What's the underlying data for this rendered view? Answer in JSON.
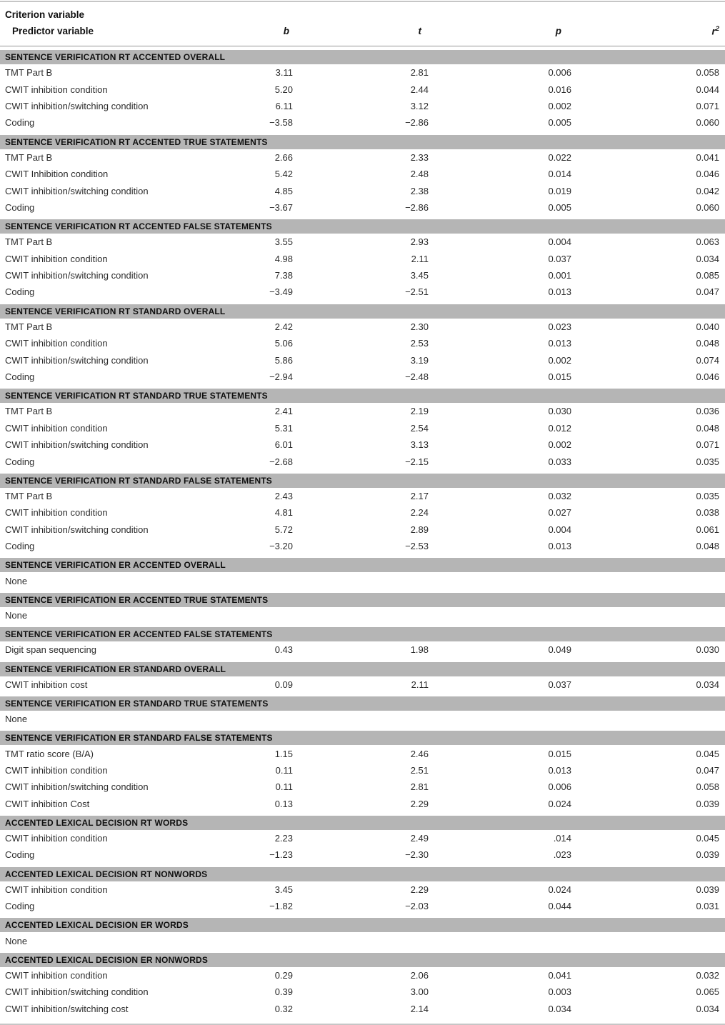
{
  "table": {
    "criterion_label": "Criterion variable",
    "predictor_label": "Predictor variable",
    "columns": [
      {
        "key": "b",
        "label": "b",
        "sup": ""
      },
      {
        "key": "t",
        "label": "t",
        "sup": ""
      },
      {
        "key": "p",
        "label": "p",
        "sup": ""
      },
      {
        "key": "r2",
        "label": "r",
        "sup": "2"
      }
    ],
    "band_color": "#b5b5b5",
    "rule_color": "#c6c6c6",
    "sections": [
      {
        "title": "SENTENCE VERIFICATION RT ACCENTED OVERALL",
        "rows": [
          {
            "predictor": "TMT Part B",
            "b": "3.11",
            "t": "2.81",
            "p": "0.006",
            "r2": "0.058"
          },
          {
            "predictor": "CWIT inhibition condition",
            "b": "5.20",
            "t": "2.44",
            "p": "0.016",
            "r2": "0.044"
          },
          {
            "predictor": "CWIT inhibition/switching condition",
            "b": "6.11",
            "t": "3.12",
            "p": "0.002",
            "r2": "0.071"
          },
          {
            "predictor": "Coding",
            "b": "−3.58",
            "t": "−2.86",
            "p": "0.005",
            "r2": "0.060"
          }
        ]
      },
      {
        "title": "SENTENCE VERIFICATION RT ACCENTED TRUE STATEMENTS",
        "rows": [
          {
            "predictor": "TMT Part B",
            "b": "2.66",
            "t": "2.33",
            "p": "0.022",
            "r2": "0.041"
          },
          {
            "predictor": "CWIT Inhibition condition",
            "b": "5.42",
            "t": "2.48",
            "p": "0.014",
            "r2": "0.046"
          },
          {
            "predictor": "CWIT inhibition/switching condition",
            "b": "4.85",
            "t": "2.38",
            "p": "0.019",
            "r2": "0.042"
          },
          {
            "predictor": "Coding",
            "b": "−3.67",
            "t": "−2.86",
            "p": "0.005",
            "r2": "0.060"
          }
        ]
      },
      {
        "title": "SENTENCE VERIFICATION RT ACCENTED FALSE STATEMENTS",
        "rows": [
          {
            "predictor": "TMT Part B",
            "b": "3.55",
            "t": "2.93",
            "p": "0.004",
            "r2": "0.063"
          },
          {
            "predictor": "CWIT inhibition condition",
            "b": "4.98",
            "t": "2.11",
            "p": "0.037",
            "r2": "0.034"
          },
          {
            "predictor": "CWIT inhibition/switching condition",
            "b": "7.38",
            "t": "3.45",
            "p": "0.001",
            "r2": "0.085"
          },
          {
            "predictor": "Coding",
            "b": "−3.49",
            "t": "−2.51",
            "p": "0.013",
            "r2": "0.047"
          }
        ]
      },
      {
        "title": "SENTENCE VERIFICATION RT STANDARD OVERALL",
        "rows": [
          {
            "predictor": "TMT Part B",
            "b": "2.42",
            "t": "2.30",
            "p": "0.023",
            "r2": "0.040"
          },
          {
            "predictor": "CWIT inhibition condition",
            "b": "5.06",
            "t": "2.53",
            "p": "0.013",
            "r2": "0.048"
          },
          {
            "predictor": "CWIT inhibition/switching condition",
            "b": "5.86",
            "t": "3.19",
            "p": "0.002",
            "r2": "0.074"
          },
          {
            "predictor": "Coding",
            "b": "−2.94",
            "t": "−2.48",
            "p": "0.015",
            "r2": "0.046"
          }
        ]
      },
      {
        "title": "SENTENCE VERIFICATION RT STANDARD TRUE STATEMENTS",
        "rows": [
          {
            "predictor": "TMT Part B",
            "b": "2.41",
            "t": "2.19",
            "p": "0.030",
            "r2": "0.036"
          },
          {
            "predictor": "CWIT inhibition condition",
            "b": "5.31",
            "t": "2.54",
            "p": "0.012",
            "r2": "0.048"
          },
          {
            "predictor": "CWIT inhibition/switching condition",
            "b": "6.01",
            "t": "3.13",
            "p": "0.002",
            "r2": "0.071"
          },
          {
            "predictor": "Coding",
            "b": "−2.68",
            "t": "−2.15",
            "p": "0.033",
            "r2": "0.035"
          }
        ]
      },
      {
        "title": "SENTENCE VERIFICATION RT STANDARD FALSE STATEMENTS",
        "rows": [
          {
            "predictor": "TMT Part B",
            "b": "2.43",
            "t": "2.17",
            "p": "0.032",
            "r2": "0.035"
          },
          {
            "predictor": "CWIT inhibition condition",
            "b": "4.81",
            "t": "2.24",
            "p": "0.027",
            "r2": "0.038"
          },
          {
            "predictor": "CWIT inhibition/switching condition",
            "b": "5.72",
            "t": "2.89",
            "p": "0.004",
            "r2": "0.061"
          },
          {
            "predictor": "Coding",
            "b": "−3.20",
            "t": "−2.53",
            "p": "0.013",
            "r2": "0.048"
          }
        ]
      },
      {
        "title": "SENTENCE VERIFICATION ER ACCENTED OVERALL",
        "rows": [
          {
            "predictor": "None",
            "b": "",
            "t": "",
            "p": "",
            "r2": ""
          }
        ]
      },
      {
        "title": "SENTENCE VERIFICATION ER ACCENTED TRUE STATEMENTS",
        "rows": [
          {
            "predictor": "None",
            "b": "",
            "t": "",
            "p": "",
            "r2": ""
          }
        ]
      },
      {
        "title": "SENTENCE VERIFICATION ER ACCENTED FALSE STATEMENTS",
        "rows": [
          {
            "predictor": "Digit span sequencing",
            "b": "0.43",
            "t": "1.98",
            "p": "0.049",
            "r2": "0.030"
          }
        ]
      },
      {
        "title": "SENTENCE VERIFICATION ER STANDARD OVERALL",
        "rows": [
          {
            "predictor": "CWIT inhibition cost",
            "b": "0.09",
            "t": "2.11",
            "p": "0.037",
            "r2": "0.034"
          }
        ]
      },
      {
        "title": "SENTENCE VERIFICATION ER STANDARD TRUE STATEMENTS",
        "rows": [
          {
            "predictor": "None",
            "b": "",
            "t": "",
            "p": "",
            "r2": ""
          }
        ]
      },
      {
        "title": "SENTENCE VERIFICATION ER STANDARD FALSE STATEMENTS",
        "rows": [
          {
            "predictor": "TMT ratio score (B/A)",
            "b": "1.15",
            "t": "2.46",
            "p": "0.015",
            "r2": "0.045"
          },
          {
            "predictor": "CWIT inhibition condition",
            "b": "0.11",
            "t": "2.51",
            "p": "0.013",
            "r2": "0.047"
          },
          {
            "predictor": "CWIT inhibition/switching condition",
            "b": "0.11",
            "t": "2.81",
            "p": "0.006",
            "r2": "0.058"
          },
          {
            "predictor": "CWIT inhibition Cost",
            "b": "0.13",
            "t": "2.29",
            "p": "0.024",
            "r2": "0.039"
          }
        ]
      },
      {
        "title": "ACCENTED LEXICAL DECISION RT WORDS",
        "rows": [
          {
            "predictor": "CWIT inhibition condition",
            "b": "2.23",
            "t": "2.49",
            "p": ".014",
            "r2": "0.045"
          },
          {
            "predictor": "Coding",
            "b": "−1.23",
            "t": "−2.30",
            "p": ".023",
            "r2": "0.039"
          }
        ]
      },
      {
        "title": "ACCENTED LEXICAL DECISION RT NONWORDS",
        "rows": [
          {
            "predictor": "CWIT inhibition condition",
            "b": "3.45",
            "t": "2.29",
            "p": "0.024",
            "r2": "0.039"
          },
          {
            "predictor": "Coding",
            "b": "−1.82",
            "t": "−2.03",
            "p": "0.044",
            "r2": "0.031"
          }
        ]
      },
      {
        "title": "ACCENTED LEXICAL DECISION ER WORDS",
        "rows": [
          {
            "predictor": "None",
            "b": "",
            "t": "",
            "p": "",
            "r2": ""
          }
        ]
      },
      {
        "title": "ACCENTED LEXICAL DECISION ER NONWORDS",
        "rows": [
          {
            "predictor": "CWIT inhibition condition",
            "b": "0.29",
            "t": "2.06",
            "p": "0.041",
            "r2": "0.032"
          },
          {
            "predictor": "CWIT inhibition/switching condition",
            "b": "0.39",
            "t": "3.00",
            "p": "0.003",
            "r2": "0.065"
          },
          {
            "predictor": "CWIT inhibition/switching cost",
            "b": "0.32",
            "t": "2.14",
            "p": "0.034",
            "r2": "0.034"
          }
        ]
      }
    ]
  }
}
